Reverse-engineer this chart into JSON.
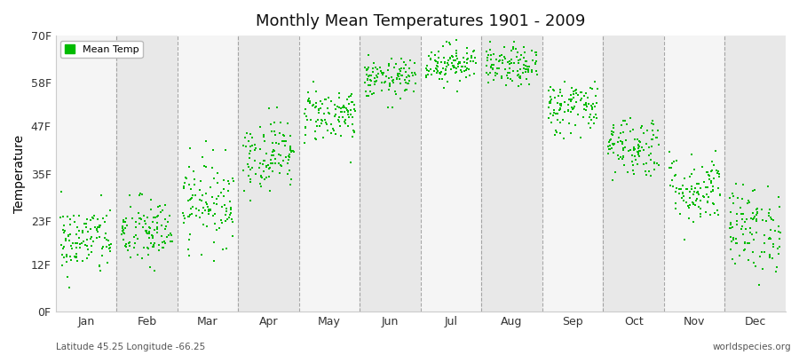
{
  "title": "Monthly Mean Temperatures 1901 - 2009",
  "ylabel": "Temperature",
  "footer_left": "Latitude 45.25 Longitude -66.25",
  "footer_right": "worldspecies.org",
  "legend_label": "Mean Temp",
  "dot_color": "#00bb00",
  "background_color": "#ffffff",
  "panel_color_light": "#f5f5f5",
  "panel_color_dark": "#e8e8e8",
  "ytick_labels": [
    "0F",
    "12F",
    "23F",
    "35F",
    "47F",
    "58F",
    "70F"
  ],
  "ytick_values": [
    0,
    12,
    23,
    35,
    47,
    58,
    70
  ],
  "months": [
    "Jan",
    "Feb",
    "Mar",
    "Apr",
    "May",
    "Jun",
    "Jul",
    "Aug",
    "Sep",
    "Oct",
    "Nov",
    "Dec"
  ],
  "month_means": [
    18,
    20,
    28,
    40,
    50,
    59,
    63,
    62,
    52,
    42,
    31,
    21
  ],
  "month_stds": [
    4.5,
    4.5,
    5.5,
    4.5,
    3.5,
    2.5,
    2.5,
    2.5,
    3.5,
    4.0,
    4.5,
    5.5
  ],
  "n_points": 109,
  "ylim": [
    0,
    70
  ],
  "xlim_left": 0.0,
  "xlim_right": 12.0,
  "seed": 42
}
